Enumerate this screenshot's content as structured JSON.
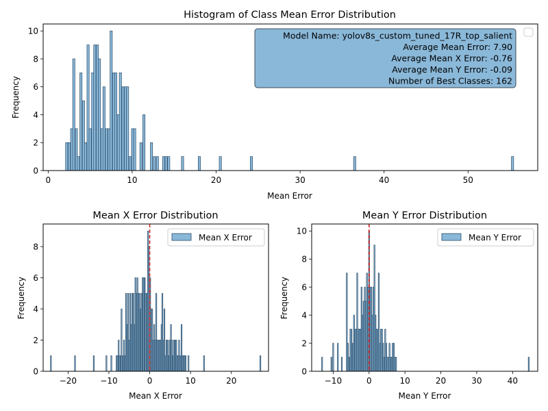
{
  "chart_data": [
    {
      "type": "bar",
      "title": "Histogram of Class Mean Error Distribution",
      "xlabel": "Mean Error",
      "ylabel": "Frequency",
      "xlim": [
        -0.6,
        58.3
      ],
      "ylim": [
        0,
        10.5
      ],
      "xticks": [
        0,
        10,
        20,
        30,
        40,
        50
      ],
      "yticks": [
        0,
        2,
        4,
        6,
        8,
        10
      ],
      "bin_width": 0.265,
      "bar_color": "#8ab8d9",
      "edge_color": "#2a4a66",
      "legend_placement": "top-right",
      "legend_entries": [
        ""
      ],
      "info_box": [
        "Model Name: yolov8s_custom_tuned_17R_top_salient",
        "Average Mean Error: 7.90",
        "Average Mean X Error: -0.76",
        "Average Mean Y Error: -0.09",
        "Number of Best Classes: 162"
      ],
      "bins": [
        [
          2.2,
          2
        ],
        [
          2.5,
          2
        ],
        [
          2.8,
          3
        ],
        [
          3.05,
          8
        ],
        [
          3.35,
          3
        ],
        [
          3.6,
          1
        ],
        [
          3.9,
          7
        ],
        [
          4.2,
          5
        ],
        [
          4.45,
          2
        ],
        [
          4.75,
          9
        ],
        [
          5.0,
          3
        ],
        [
          5.3,
          7
        ],
        [
          5.55,
          9
        ],
        [
          5.85,
          9
        ],
        [
          6.1,
          8
        ],
        [
          6.4,
          3
        ],
        [
          6.65,
          6
        ],
        [
          6.95,
          3
        ],
        [
          7.25,
          3
        ],
        [
          7.5,
          10
        ],
        [
          7.8,
          7
        ],
        [
          8.05,
          7
        ],
        [
          8.35,
          4
        ],
        [
          8.6,
          7
        ],
        [
          8.9,
          6
        ],
        [
          9.2,
          6
        ],
        [
          9.45,
          6
        ],
        [
          9.75,
          1
        ],
        [
          10.05,
          3
        ],
        [
          10.3,
          3
        ],
        [
          11.05,
          2
        ],
        [
          11.4,
          4
        ],
        [
          12.3,
          2
        ],
        [
          12.65,
          1
        ],
        [
          13.0,
          1
        ],
        [
          13.75,
          1
        ],
        [
          14.05,
          1
        ],
        [
          14.35,
          1
        ],
        [
          16.0,
          1
        ],
        [
          18.0,
          1
        ],
        [
          20.5,
          1
        ],
        [
          24.2,
          1
        ],
        [
          36.5,
          1
        ],
        [
          55.3,
          1
        ]
      ]
    },
    {
      "type": "bar",
      "title": "Mean X Error Distribution",
      "xlabel": "Mean X Error",
      "ylabel": "Frequency",
      "xlim": [
        -26.1,
        29.1
      ],
      "ylim": [
        0,
        9.45
      ],
      "xticks": [
        -20,
        -10,
        0,
        10,
        20
      ],
      "yticks": [
        0,
        2,
        4,
        6,
        8
      ],
      "bin_width": 0.24,
      "bar_color": "#8ab8d9",
      "edge_color": "#2a4a66",
      "legend_placement": "top-right",
      "legend_entries": [
        "Mean X Error"
      ],
      "reference_line_x": 0,
      "reference_line_color": "#d62728",
      "bins": [
        [
          -24.2,
          1
        ],
        [
          -18.3,
          1
        ],
        [
          -13.7,
          1
        ],
        [
          -10.6,
          1
        ],
        [
          -9.4,
          1
        ],
        [
          -8.1,
          1
        ],
        [
          -7.9,
          1
        ],
        [
          -7.6,
          2
        ],
        [
          -7.4,
          1
        ],
        [
          -7.1,
          1
        ],
        [
          -6.9,
          4
        ],
        [
          -6.6,
          1
        ],
        [
          -6.3,
          2
        ],
        [
          -6.1,
          1
        ],
        [
          -5.8,
          5
        ],
        [
          -5.5,
          3
        ],
        [
          -5.3,
          5
        ],
        [
          -5.0,
          2
        ],
        [
          -4.8,
          5
        ],
        [
          -4.5,
          3
        ],
        [
          -4.3,
          5
        ],
        [
          -4.0,
          5
        ],
        [
          -3.8,
          3
        ],
        [
          -3.5,
          6
        ],
        [
          -3.3,
          5
        ],
        [
          -3.0,
          6
        ],
        [
          -2.8,
          5
        ],
        [
          -2.5,
          5
        ],
        [
          -2.2,
          4
        ],
        [
          -2.0,
          5
        ],
        [
          -1.7,
          6
        ],
        [
          -1.5,
          6
        ],
        [
          -1.2,
          6
        ],
        [
          -1.0,
          5
        ],
        [
          -0.7,
          5
        ],
        [
          -0.4,
          9
        ],
        [
          -0.2,
          8
        ],
        [
          0.1,
          6
        ],
        [
          0.3,
          4
        ],
        [
          0.6,
          4
        ],
        [
          0.8,
          2
        ],
        [
          1.1,
          3
        ],
        [
          1.3,
          2
        ],
        [
          1.6,
          5
        ],
        [
          1.8,
          2
        ],
        [
          2.1,
          2
        ],
        [
          2.4,
          2
        ],
        [
          2.6,
          2
        ],
        [
          2.9,
          3
        ],
        [
          3.1,
          5
        ],
        [
          3.4,
          2
        ],
        [
          3.6,
          4
        ],
        [
          3.9,
          1
        ],
        [
          4.1,
          2
        ],
        [
          4.4,
          2
        ],
        [
          4.7,
          1
        ],
        [
          4.9,
          2
        ],
        [
          5.2,
          3
        ],
        [
          5.4,
          2
        ],
        [
          5.7,
          1
        ],
        [
          5.9,
          2
        ],
        [
          6.2,
          2
        ],
        [
          6.5,
          2
        ],
        [
          6.7,
          1
        ],
        [
          7.0,
          1
        ],
        [
          7.2,
          2
        ],
        [
          7.5,
          1
        ],
        [
          7.8,
          3
        ],
        [
          8.0,
          1
        ],
        [
          8.3,
          1
        ],
        [
          8.6,
          1
        ],
        [
          8.8,
          1
        ],
        [
          9.5,
          1
        ],
        [
          13.3,
          1
        ],
        [
          27.1,
          1
        ]
      ]
    },
    {
      "type": "bar",
      "title": "Mean Y Error Distribution",
      "xlabel": "Mean Y Error",
      "ylabel": "Frequency",
      "xlim": [
        -16.0,
        47.0
      ],
      "ylim": [
        0,
        10.5
      ],
      "xticks": [
        -10,
        0,
        10,
        20,
        30,
        40
      ],
      "yticks": [
        0,
        2,
        4,
        6,
        8,
        10
      ],
      "bin_width": 0.28,
      "bar_color": "#8ab8d9",
      "edge_color": "#2a4a66",
      "legend_placement": "top-right",
      "legend_entries": [
        "Mean Y Error"
      ],
      "reference_line_x": 0,
      "reference_line_color": "#d62728",
      "bins": [
        [
          -13.1,
          1
        ],
        [
          -10.5,
          1
        ],
        [
          -10.0,
          2
        ],
        [
          -8.7,
          2
        ],
        [
          -7.6,
          1
        ],
        [
          -6.2,
          7
        ],
        [
          -5.9,
          2
        ],
        [
          -5.6,
          1
        ],
        [
          -5.2,
          3
        ],
        [
          -4.9,
          3
        ],
        [
          -4.5,
          2
        ],
        [
          -4.2,
          4
        ],
        [
          -3.9,
          3
        ],
        [
          -3.6,
          3
        ],
        [
          -3.3,
          7
        ],
        [
          -3.0,
          3
        ],
        [
          -2.7,
          3
        ],
        [
          -2.4,
          3
        ],
        [
          -2.1,
          6
        ],
        [
          -1.8,
          4
        ],
        [
          -1.5,
          5
        ],
        [
          -1.2,
          6
        ],
        [
          -0.9,
          5
        ],
        [
          -0.6,
          7
        ],
        [
          -0.3,
          6
        ],
        [
          0.0,
          10
        ],
        [
          0.3,
          6
        ],
        [
          0.6,
          6
        ],
        [
          0.9,
          4
        ],
        [
          1.2,
          6
        ],
        [
          1.5,
          9
        ],
        [
          1.8,
          4
        ],
        [
          2.1,
          3
        ],
        [
          2.4,
          3
        ],
        [
          2.7,
          7
        ],
        [
          3.0,
          2
        ],
        [
          3.3,
          3
        ],
        [
          3.6,
          3
        ],
        [
          3.9,
          2
        ],
        [
          4.2,
          1
        ],
        [
          4.5,
          3
        ],
        [
          4.8,
          2
        ],
        [
          5.1,
          1
        ],
        [
          5.4,
          1
        ],
        [
          5.7,
          2
        ],
        [
          6.0,
          1
        ],
        [
          6.3,
          1
        ],
        [
          6.6,
          2
        ],
        [
          6.9,
          2
        ],
        [
          7.2,
          1
        ],
        [
          7.5,
          1
        ],
        [
          44.5,
          1
        ]
      ]
    }
  ]
}
